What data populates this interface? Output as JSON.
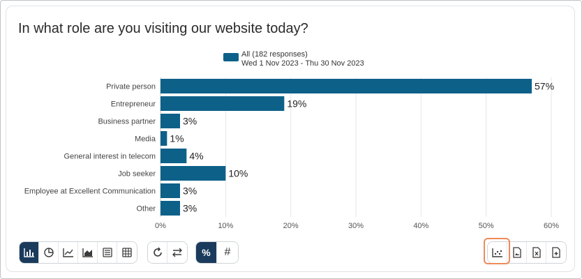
{
  "title": "In what role are you visiting our website today?",
  "legend": {
    "line1": "All (182 responses)",
    "line2": "Wed 1 Nov 2023 - Thu 30 Nov 2023"
  },
  "colors": {
    "bar": "#0d6189",
    "grid": "#e6e6e6",
    "toolbar_active": "#1b3b5c",
    "highlight": "#ef8a5a"
  },
  "chart_data": {
    "type": "bar",
    "orientation": "horizontal",
    "categories": [
      "Private person",
      "Entrepreneur",
      "Business partner",
      "Media",
      "General interest in telecom",
      "Job seeker",
      "Employee at Excellent Communication",
      "Other"
    ],
    "values": [
      57,
      19,
      3,
      1,
      4,
      10,
      3,
      3
    ],
    "labels": [
      "57%",
      "19%",
      "3%",
      "1%",
      "4%",
      "10%",
      "3%",
      "3%"
    ],
    "xticks": [
      "0%",
      "10%",
      "20%",
      "30%",
      "40%",
      "50%",
      "60%"
    ],
    "xlim": [
      0,
      60
    ],
    "series": [
      {
        "name": "All (182 responses)",
        "values": [
          57,
          19,
          3,
          1,
          4,
          10,
          3,
          3
        ]
      }
    ],
    "legend_position": "top",
    "grid": true
  },
  "toolbar": {
    "chart_types": [
      {
        "icon": "bar-chart-icon",
        "active": true
      },
      {
        "icon": "pie-chart-icon",
        "active": false
      },
      {
        "icon": "line-chart-icon",
        "active": false
      },
      {
        "icon": "area-chart-icon",
        "active": false
      },
      {
        "icon": "list-icon",
        "active": false
      },
      {
        "icon": "table-icon",
        "active": false
      }
    ],
    "actions": [
      {
        "icon": "refresh-icon"
      },
      {
        "icon": "swap-icon"
      }
    ],
    "modes": [
      {
        "label": "%",
        "active": true
      },
      {
        "label": "#",
        "active": false
      }
    ],
    "exports": [
      {
        "icon": "scatter-icon"
      },
      {
        "icon": "export-image-icon"
      },
      {
        "icon": "export-excel-icon"
      },
      {
        "icon": "export-add-icon"
      }
    ]
  }
}
